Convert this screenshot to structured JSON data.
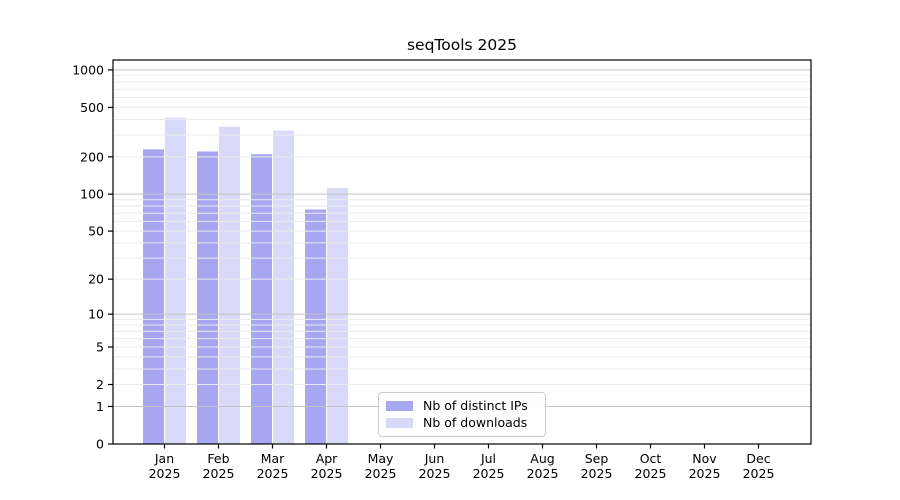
{
  "figure": {
    "title": "seqTools 2025"
  },
  "chart_data": {
    "type": "bar",
    "title": "seqTools 2025",
    "categories": [
      "Jan",
      "Feb",
      "Mar",
      "Apr",
      "May",
      "Jun",
      "Jul",
      "Aug",
      "Sep",
      "Oct",
      "Nov",
      "Dec"
    ],
    "x_tick_second_line": "2025",
    "series": [
      {
        "name": "Nb of distinct IPs",
        "color": "#a6a6f1",
        "values": [
          230,
          221,
          210,
          75,
          0,
          0,
          0,
          0,
          0,
          0,
          0,
          0
        ]
      },
      {
        "name": "Nb of downloads",
        "color": "#d9d9f9",
        "values": [
          414,
          350,
          325,
          112,
          0,
          0,
          0,
          0,
          0,
          0,
          0,
          0
        ]
      }
    ],
    "xlabel": "",
    "ylabel": "",
    "y_scale": "log1p (position = log10(value+1))",
    "y_ticks": [
      0,
      1,
      2,
      5,
      10,
      20,
      50,
      100,
      200,
      500,
      1000
    ],
    "ylim": [
      0,
      1250
    ],
    "grid": true,
    "grid_major_at": [
      1,
      10,
      100,
      1000
    ],
    "grid_minor": "2..9 per decade",
    "legend_position": "lower center",
    "colors": {
      "spine": "#000000",
      "grid_major": "#c3c3c3",
      "grid_minor": "#ebebeb",
      "text": "#000000"
    }
  }
}
